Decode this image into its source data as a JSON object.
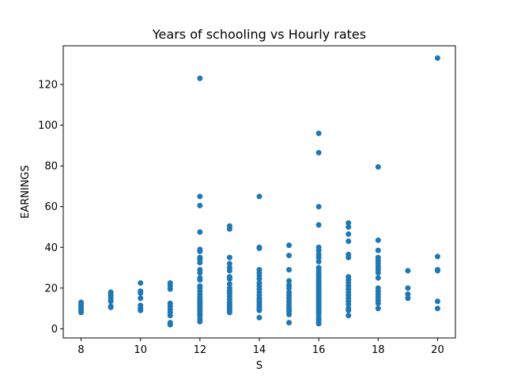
{
  "chart_data": {
    "type": "scatter",
    "title": "Years of schooling vs Hourly rates",
    "xlabel": "S",
    "ylabel": "EARNINGS",
    "xlim": [
      7.4,
      20.6
    ],
    "ylim": [
      -4.5,
      139
    ],
    "xticks": [
      8,
      10,
      12,
      14,
      16,
      18,
      20
    ],
    "yticks": [
      0,
      20,
      40,
      60,
      80,
      100,
      120
    ],
    "grid": false,
    "marker_color": "#1f77b4",
    "points": [
      [
        8,
        8
      ],
      [
        8,
        9
      ],
      [
        8,
        10
      ],
      [
        8,
        11
      ],
      [
        8,
        12
      ],
      [
        8,
        13
      ],
      [
        9,
        10.5
      ],
      [
        9,
        11
      ],
      [
        9,
        13.5
      ],
      [
        9,
        14.5
      ],
      [
        9,
        16
      ],
      [
        9,
        17
      ],
      [
        9,
        18
      ],
      [
        10,
        9
      ],
      [
        10,
        10
      ],
      [
        10,
        11.5
      ],
      [
        10,
        15
      ],
      [
        10,
        17.5
      ],
      [
        10,
        18.5
      ],
      [
        10,
        22.5
      ],
      [
        11,
        2
      ],
      [
        11,
        3
      ],
      [
        11,
        6.5
      ],
      [
        11,
        8
      ],
      [
        11,
        9.5
      ],
      [
        11,
        11
      ],
      [
        11,
        12.5
      ],
      [
        11,
        19.5
      ],
      [
        11,
        21
      ],
      [
        11,
        22.5
      ],
      [
        12,
        3.5
      ],
      [
        12,
        5
      ],
      [
        12,
        6.5
      ],
      [
        12,
        7.5
      ],
      [
        12,
        8.5
      ],
      [
        12,
        9.5
      ],
      [
        12,
        10.5
      ],
      [
        12,
        11.5
      ],
      [
        12,
        12.5
      ],
      [
        12,
        13.5
      ],
      [
        12,
        14.5
      ],
      [
        12,
        15.5
      ],
      [
        12,
        17
      ],
      [
        12,
        18.5
      ],
      [
        12,
        20
      ],
      [
        12,
        21
      ],
      [
        12,
        24
      ],
      [
        12,
        25
      ],
      [
        12,
        27.5
      ],
      [
        12,
        29
      ],
      [
        12,
        32.5
      ],
      [
        12,
        34
      ],
      [
        12,
        35
      ],
      [
        12,
        38
      ],
      [
        12,
        39
      ],
      [
        12,
        47.5
      ],
      [
        12,
        60.5
      ],
      [
        12,
        65
      ],
      [
        12,
        123
      ],
      [
        13,
        8
      ],
      [
        13,
        9
      ],
      [
        13,
        10
      ],
      [
        13,
        11
      ],
      [
        13,
        12
      ],
      [
        13,
        13
      ],
      [
        13,
        14.5
      ],
      [
        13,
        16
      ],
      [
        13,
        17.5
      ],
      [
        13,
        18.5
      ],
      [
        13,
        20
      ],
      [
        13,
        22
      ],
      [
        13,
        24.5
      ],
      [
        13,
        25.5
      ],
      [
        13,
        28.5
      ],
      [
        13,
        30
      ],
      [
        13,
        32
      ],
      [
        13,
        35
      ],
      [
        13,
        49
      ],
      [
        13,
        50.5
      ],
      [
        14,
        5.5
      ],
      [
        14,
        9
      ],
      [
        14,
        10
      ],
      [
        14,
        11
      ],
      [
        14,
        12
      ],
      [
        14,
        13
      ],
      [
        14,
        14
      ],
      [
        14,
        15
      ],
      [
        14,
        16.5
      ],
      [
        14,
        18
      ],
      [
        14,
        19.5
      ],
      [
        14,
        21
      ],
      [
        14,
        22.5
      ],
      [
        14,
        24.5
      ],
      [
        14,
        26
      ],
      [
        14,
        27.5
      ],
      [
        14,
        29
      ],
      [
        14,
        39.5
      ],
      [
        14,
        40
      ],
      [
        14,
        65
      ],
      [
        15,
        3
      ],
      [
        15,
        7
      ],
      [
        15,
        8.5
      ],
      [
        15,
        9.5
      ],
      [
        15,
        10.5
      ],
      [
        15,
        12
      ],
      [
        15,
        13.5
      ],
      [
        15,
        15
      ],
      [
        15,
        16.5
      ],
      [
        15,
        18
      ],
      [
        15,
        20
      ],
      [
        15,
        21.5
      ],
      [
        15,
        23.5
      ],
      [
        15,
        29
      ],
      [
        15,
        36
      ],
      [
        15,
        41
      ],
      [
        16,
        2.5
      ],
      [
        16,
        3.5
      ],
      [
        16,
        4.5
      ],
      [
        16,
        5.5
      ],
      [
        16,
        7
      ],
      [
        16,
        8
      ],
      [
        16,
        9
      ],
      [
        16,
        10
      ],
      [
        16,
        11
      ],
      [
        16,
        12
      ],
      [
        16,
        13
      ],
      [
        16,
        14
      ],
      [
        16,
        15
      ],
      [
        16,
        16
      ],
      [
        16,
        17
      ],
      [
        16,
        18
      ],
      [
        16,
        19
      ],
      [
        16,
        20
      ],
      [
        16,
        21
      ],
      [
        16,
        22
      ],
      [
        16,
        23
      ],
      [
        16,
        24
      ],
      [
        16,
        25
      ],
      [
        16,
        26
      ],
      [
        16,
        27
      ],
      [
        16,
        28.5
      ],
      [
        16,
        30
      ],
      [
        16,
        33
      ],
      [
        16,
        35
      ],
      [
        16,
        36.5
      ],
      [
        16,
        38.5
      ],
      [
        16,
        40
      ],
      [
        16,
        51
      ],
      [
        16,
        60
      ],
      [
        16,
        86.5
      ],
      [
        16,
        96
      ],
      [
        17,
        6.5
      ],
      [
        17,
        9
      ],
      [
        17,
        10
      ],
      [
        17,
        12
      ],
      [
        17,
        13.5
      ],
      [
        17,
        15
      ],
      [
        17,
        16.5
      ],
      [
        17,
        18
      ],
      [
        17,
        19.5
      ],
      [
        17,
        21
      ],
      [
        17,
        22.5
      ],
      [
        17,
        24
      ],
      [
        17,
        25.5
      ],
      [
        17,
        35
      ],
      [
        17,
        36.5
      ],
      [
        17,
        43
      ],
      [
        17,
        46.5
      ],
      [
        17,
        50
      ],
      [
        17,
        52
      ],
      [
        18,
        10
      ],
      [
        18,
        12.5
      ],
      [
        18,
        14
      ],
      [
        18,
        15.5
      ],
      [
        18,
        17
      ],
      [
        18,
        18.5
      ],
      [
        18,
        20
      ],
      [
        18,
        25
      ],
      [
        18,
        27.5
      ],
      [
        18,
        29
      ],
      [
        18,
        30.5
      ],
      [
        18,
        32
      ],
      [
        18,
        33.5
      ],
      [
        18,
        35
      ],
      [
        18,
        38.5
      ],
      [
        18,
        43.5
      ],
      [
        18,
        79.5
      ],
      [
        19,
        15
      ],
      [
        19,
        17
      ],
      [
        19,
        20
      ],
      [
        19,
        28.5
      ],
      [
        20,
        10
      ],
      [
        20,
        13.5
      ],
      [
        20,
        28.5
      ],
      [
        20,
        29
      ],
      [
        20,
        35.5
      ],
      [
        20,
        133
      ]
    ]
  }
}
